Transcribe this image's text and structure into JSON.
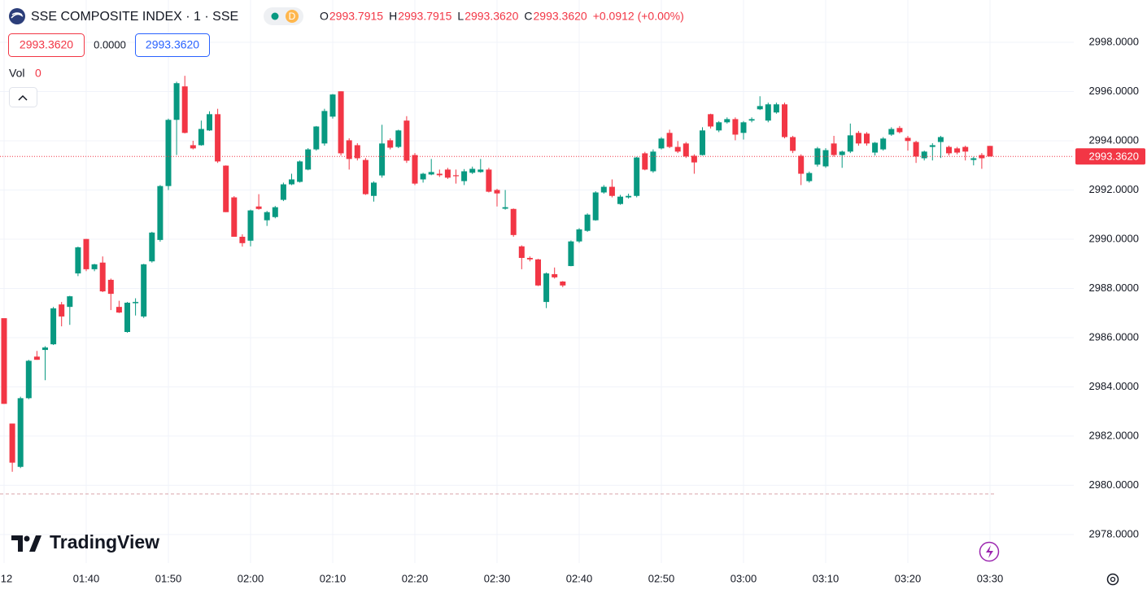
{
  "header": {
    "title": "SSE COMPOSITE INDEX · 1 · SSE",
    "interval_badge": "D",
    "ohlc": [
      {
        "label": "O",
        "value": "2993.7915"
      },
      {
        "label": "H",
        "value": "2993.7915"
      },
      {
        "label": "L",
        "value": "2993.3620"
      },
      {
        "label": "C",
        "value": "2993.3620"
      }
    ],
    "change": "+0.0912 (+0.00%)",
    "sell_price": "2993.3620",
    "spread": "0.0000",
    "buy_price": "2993.3620",
    "volume_label": "Vol",
    "volume_value": "0"
  },
  "logo": "TradingView",
  "chart_data": {
    "type": "candlestick",
    "categories": [
      "12",
      null,
      null,
      null,
      null,
      null,
      null,
      null,
      null,
      null,
      "01:40",
      null,
      null,
      null,
      null,
      null,
      null,
      null,
      null,
      null,
      "01:50",
      null,
      null,
      null,
      null,
      null,
      null,
      null,
      null,
      null,
      "02:00",
      null,
      null,
      null,
      null,
      null,
      null,
      null,
      null,
      null,
      "02:10",
      null,
      null,
      null,
      null,
      null,
      null,
      null,
      null,
      null,
      "02:20",
      null,
      null,
      null,
      null,
      null,
      null,
      null,
      null,
      null,
      "02:30",
      null,
      null,
      null,
      null,
      null,
      null,
      null,
      null,
      null,
      "02:40",
      null,
      null,
      null,
      null,
      null,
      null,
      null,
      null,
      null,
      "02:50",
      null,
      null,
      null,
      null,
      null,
      null,
      null,
      null,
      null,
      "03:00",
      null,
      null,
      null,
      null,
      null,
      null,
      null,
      null,
      null,
      "03:10",
      null,
      null,
      null,
      null,
      null,
      null,
      null,
      null,
      null,
      "03:20",
      null,
      null,
      null,
      null,
      null,
      null,
      null,
      null,
      null,
      "03:30"
    ],
    "open": [
      2986.79,
      2982.51,
      2980.75,
      2983.54,
      2985.23,
      2985.5,
      2985.73,
      2987.35,
      2987.25,
      2988.61,
      2990.01,
      2988.78,
      2989.05,
      2988.35,
      2987.25,
      2986.23,
      2987.4,
      2986.86,
      2989.1,
      2989.97,
      2992.16,
      2994.85,
      2996.21,
      2993.82,
      2993.82,
      2994.42,
      2995.08,
      2992.99,
      2991.7,
      2990.1,
      2989.94,
      2991.33,
      2990.77,
      2990.9,
      2991.6,
      2992.23,
      2992.33,
      2992.83,
      2993.65,
      2993.89,
      2994.98,
      2996.01,
      2994.02,
      2993.82,
      2993.22,
      2991.76,
      2992.59,
      2994.02,
      2993.75,
      2994.82,
      2993.42,
      2992.43,
      2992.63,
      2992.66,
      2992.83,
      2992.6,
      2992.36,
      2992.7,
      2992.73,
      2992.83,
      2992.0,
      2991.24,
      2991.23,
      2989.71,
      2989.24,
      2989.18,
      2987.45,
      2988.58,
      2988.28,
      2988.91,
      2989.91,
      2990.34,
      2990.77,
      2991.9,
      2992.13,
      2991.43,
      2991.7,
      2991.76,
      2993.49,
      2992.76,
      2993.69,
      2994.32,
      2993.75,
      2993.89,
      2993.39,
      2993.42,
      2995.08,
      2994.42,
      2994.75,
      2994.88,
      2994.32,
      2994.82,
      2995.28,
      2994.82,
      2995.15,
      2995.48,
      2994.15,
      2993.39,
      2992.36,
      2993.03,
      2992.96,
      2993.89,
      2993.42,
      2993.56,
      2994.32,
      2994.29,
      2993.52,
      2993.65,
      2994.25,
      2994.52,
      2994.12,
      2993.95,
      2993.29,
      2993.75,
      2993.95,
      2993.75,
      2993.69,
      2993.75,
      2993.22,
      2993.42,
      2993.7915
    ],
    "high": [
      2986.79,
      2982.51,
      2983.6,
      2985.1,
      2985.46,
      2985.65,
      2987.25,
      2987.45,
      2987.7,
      2989.7,
      2990.01,
      2989.0,
      2989.3,
      2988.4,
      2987.5,
      2987.45,
      2987.6,
      2989.0,
      2990.3,
      2992.2,
      2994.9,
      2996.4,
      2996.64,
      2994.0,
      2994.82,
      2995.2,
      2995.3,
      2993.0,
      2991.75,
      2990.2,
      2991.2,
      2991.83,
      2991.15,
      2991.35,
      2992.3,
      2992.66,
      2993.2,
      2993.7,
      2994.6,
      2995.3,
      2995.9,
      2996.01,
      2994.1,
      2993.9,
      2993.3,
      2992.35,
      2994.65,
      2994.1,
      2994.45,
      2995.0,
      2993.5,
      2992.7,
      2993.26,
      2992.83,
      2992.9,
      2992.83,
      2992.85,
      2992.95,
      2993.26,
      2992.9,
      2992.05,
      2992.0,
      2991.25,
      2989.75,
      2989.3,
      2989.2,
      2988.65,
      2988.85,
      2988.3,
      2989.95,
      2990.45,
      2991.05,
      2991.95,
      2992.2,
      2992.43,
      2991.8,
      2991.85,
      2993.35,
      2993.55,
      2993.65,
      2994.15,
      2994.45,
      2993.99,
      2993.95,
      2993.45,
      2994.55,
      2995.1,
      2994.8,
      2994.95,
      2994.95,
      2994.8,
      2994.95,
      2995.81,
      2995.55,
      2995.55,
      2995.55,
      2994.2,
      2993.45,
      2992.75,
      2993.75,
      2993.7,
      2994.2,
      2993.6,
      2994.7,
      2994.4,
      2994.35,
      2993.95,
      2994.15,
      2994.55,
      2994.6,
      2994.2,
      2994.0,
      2993.6,
      2993.9,
      2994.2,
      2993.8,
      2993.75,
      2993.8,
      2993.35,
      2993.5,
      2993.7915
    ],
    "low": [
      2983.31,
      2980.55,
      2980.7,
      2983.5,
      2985.1,
      2984.27,
      2985.7,
      2986.46,
      2986.52,
      2988.5,
      2988.7,
      2988.7,
      2987.85,
      2987.12,
      2987.0,
      2986.2,
      2986.9,
      2986.8,
      2989.05,
      2989.9,
      2992.0,
      2993.42,
      2994.3,
      2993.65,
      2993.8,
      2994.4,
      2993.1,
      2991.1,
      2990.1,
      2989.7,
      2989.71,
      2991.2,
      2990.54,
      2990.85,
      2991.55,
      2992.2,
      2992.3,
      2992.8,
      2993.6,
      2993.8,
      2994.9,
      2993.4,
      2992.83,
      2993.2,
      2991.8,
      2991.53,
      2992.5,
      2993.65,
      2993.7,
      2993.1,
      2992.2,
      2992.3,
      2992.6,
      2992.53,
      2992.45,
      2992.26,
      2992.2,
      2992.65,
      2992.7,
      2991.9,
      2991.33,
      2991.2,
      2990.1,
      2988.78,
      2989.1,
      2988.1,
      2987.2,
      2988.4,
      2988.05,
      2988.9,
      2989.85,
      2990.3,
      2990.75,
      2991.85,
      2991.7,
      2991.4,
      2991.65,
      2991.7,
      2992.8,
      2992.7,
      2993.65,
      2993.7,
      2993.5,
      2993.3,
      2992.66,
      2993.4,
      2994.5,
      2994.35,
      2994.7,
      2994.02,
      2994.05,
      2994.75,
      2995.25,
      2994.75,
      2995.1,
      2994.1,
      2993.5,
      2992.2,
      2992.3,
      2992.95,
      2992.9,
      2993.35,
      2992.9,
      2993.5,
      2993.8,
      2993.8,
      2993.4,
      2993.6,
      2994.2,
      2994.3,
      2993.6,
      2993.1,
      2993.2,
      2993.2,
      2993.3,
      2993.4,
      2993.45,
      2993.2,
      2993.0,
      2992.86,
      2993.362
    ],
    "close": [
      2983.31,
      2980.92,
      2983.54,
      2985.06,
      2985.1,
      2985.6,
      2987.19,
      2986.86,
      2987.68,
      2989.67,
      2988.78,
      2988.98,
      2987.88,
      2987.78,
      2987.02,
      2987.42,
      2987.45,
      2988.98,
      2990.27,
      2992.16,
      2994.85,
      2996.34,
      2994.32,
      2993.69,
      2994.48,
      2995.08,
      2993.16,
      2991.1,
      2990.1,
      2989.84,
      2991.17,
      2991.23,
      2991.1,
      2991.3,
      2992.23,
      2992.43,
      2993.16,
      2993.65,
      2994.58,
      2995.21,
      2995.88,
      2993.49,
      2993.26,
      2993.29,
      2991.83,
      2992.3,
      2993.89,
      2993.72,
      2994.42,
      2993.19,
      2992.26,
      2992.66,
      2992.73,
      2992.6,
      2992.5,
      2992.56,
      2992.76,
      2992.86,
      2992.83,
      2991.93,
      2991.86,
      2991.3,
      2990.17,
      2989.24,
      2989.18,
      2988.12,
      2988.61,
      2988.45,
      2988.12,
      2989.91,
      2990.4,
      2991.0,
      2991.9,
      2992.13,
      2991.76,
      2991.73,
      2991.76,
      2993.32,
      2992.83,
      2993.56,
      2994.09,
      2993.75,
      2993.56,
      2993.36,
      2993.12,
      2994.42,
      2994.58,
      2994.75,
      2994.88,
      2994.25,
      2994.75,
      2994.88,
      2995.41,
      2995.48,
      2995.48,
      2994.15,
      2993.59,
      2992.66,
      2992.69,
      2993.69,
      2993.62,
      2993.42,
      2993.56,
      2994.22,
      2993.89,
      2993.89,
      2993.92,
      2994.09,
      2994.48,
      2994.35,
      2993.99,
      2993.36,
      2993.56,
      2993.82,
      2994.15,
      2993.49,
      2993.52,
      2993.56,
      2993.29,
      2993.29,
      2993.362
    ],
    "up_color": "#089981",
    "down_color": "#f23645",
    "ylim": [
      2976.84,
      2999.72
    ],
    "yticks": [
      {
        "value": 2978,
        "label": "2978.0000"
      },
      {
        "value": 2980,
        "label": "2980.0000"
      },
      {
        "value": 2982,
        "label": "2982.0000"
      },
      {
        "value": 2984,
        "label": "2984.0000"
      },
      {
        "value": 2986,
        "label": "2986.0000"
      },
      {
        "value": 2988,
        "label": "2988.0000"
      },
      {
        "value": 2990,
        "label": "2990.0000"
      },
      {
        "value": 2992,
        "label": "2992.0000"
      },
      {
        "value": 2994,
        "label": "2994.0000"
      },
      {
        "value": 2996,
        "label": "2996.0000"
      },
      {
        "value": 2998,
        "label": "2998.0000"
      }
    ],
    "grid": true,
    "last_price": {
      "value": 2993.362,
      "label": "2993.3620"
    }
  }
}
